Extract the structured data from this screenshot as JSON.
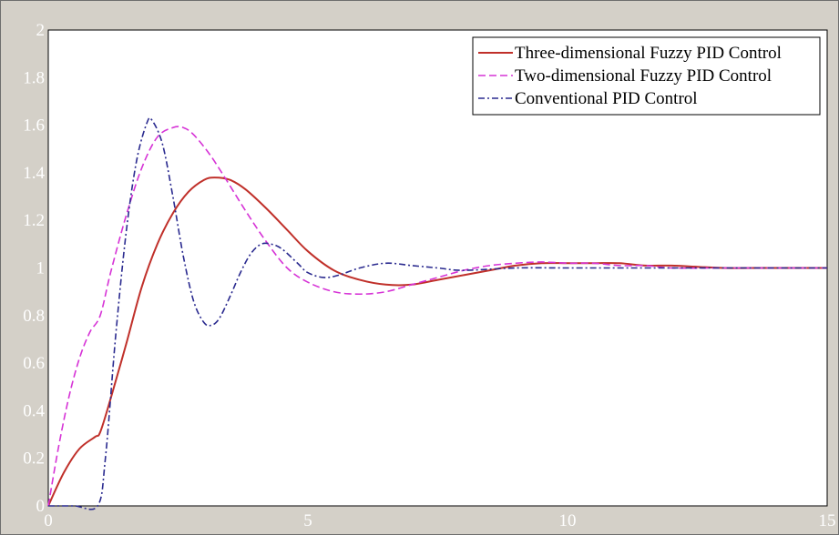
{
  "chart_data": {
    "type": "line",
    "title": "",
    "xlabel": "",
    "ylabel": "",
    "xlim": [
      0,
      15
    ],
    "ylim": [
      0,
      2
    ],
    "x_ticks": [
      "0",
      "5",
      "10",
      "15"
    ],
    "y_ticks": [
      "0",
      "0.2",
      "0.4",
      "0.6",
      "0.8",
      "1",
      "1.2",
      "1.4",
      "1.6",
      "1.8",
      "2"
    ],
    "grid": false,
    "legend_position": "top-right",
    "series": [
      {
        "name": "Three-dimensional Fuzzy PID Control",
        "color": "#c0302a",
        "dash": "solid",
        "x": [
          0,
          0.3,
          0.6,
          0.9,
          1.0,
          1.2,
          1.5,
          1.8,
          2.1,
          2.4,
          2.7,
          3.0,
          3.2,
          3.5,
          3.8,
          4.2,
          4.6,
          5.0,
          5.5,
          6.0,
          6.5,
          7.0,
          7.5,
          8.0,
          8.5,
          9.0,
          9.5,
          10.0,
          10.5,
          11.0,
          11.5,
          12.0,
          12.5,
          13.0,
          14.0,
          15.0
        ],
        "y": [
          0,
          0.14,
          0.24,
          0.29,
          0.31,
          0.45,
          0.68,
          0.92,
          1.1,
          1.23,
          1.32,
          1.37,
          1.38,
          1.37,
          1.33,
          1.25,
          1.16,
          1.07,
          0.99,
          0.95,
          0.93,
          0.93,
          0.95,
          0.97,
          0.99,
          1.01,
          1.02,
          1.02,
          1.02,
          1.02,
          1.01,
          1.01,
          1.005,
          1.0,
          1.0,
          1.0
        ]
      },
      {
        "name": "Two-dimensional Fuzzy PID Control",
        "color": "#d633d6",
        "dash": "dashed",
        "x": [
          0,
          0.2,
          0.4,
          0.6,
          0.8,
          1.0,
          1.2,
          1.5,
          1.8,
          2.1,
          2.4,
          2.6,
          2.8,
          3.1,
          3.4,
          3.8,
          4.2,
          4.6,
          5.0,
          5.5,
          6.0,
          6.5,
          7.0,
          7.5,
          8.0,
          8.5,
          9.0,
          9.5,
          10.0,
          10.5,
          11.0,
          11.5,
          12.0,
          13.0,
          14.0,
          15.0
        ],
        "y": [
          0,
          0.25,
          0.46,
          0.62,
          0.73,
          0.8,
          0.98,
          1.22,
          1.42,
          1.55,
          1.59,
          1.59,
          1.56,
          1.48,
          1.38,
          1.24,
          1.11,
          1.0,
          0.94,
          0.9,
          0.89,
          0.9,
          0.93,
          0.96,
          0.99,
          1.01,
          1.02,
          1.025,
          1.02,
          1.02,
          1.01,
          1.01,
          1.0,
          1.0,
          1.0,
          1.0
        ]
      },
      {
        "name": "Conventional PID Control",
        "color": "#2a2a8f",
        "dash": "dashdot",
        "x": [
          0,
          0.5,
          0.95,
          1.1,
          1.3,
          1.5,
          1.7,
          1.9,
          2.0,
          2.2,
          2.4,
          2.6,
          2.8,
          3.0,
          3.15,
          3.3,
          3.5,
          3.7,
          3.9,
          4.1,
          4.3,
          4.5,
          4.8,
          5.0,
          5.3,
          5.6,
          6.0,
          6.5,
          7.0,
          7.5,
          8.0,
          9.0,
          10.0,
          11.0,
          12.0,
          13.0,
          14.0,
          15.0
        ],
        "y": [
          0,
          0,
          0,
          0.2,
          0.72,
          1.15,
          1.45,
          1.61,
          1.62,
          1.52,
          1.3,
          1.05,
          0.86,
          0.77,
          0.76,
          0.79,
          0.88,
          0.98,
          1.06,
          1.1,
          1.1,
          1.08,
          1.02,
          0.98,
          0.96,
          0.97,
          1.0,
          1.02,
          1.01,
          1.0,
          0.99,
          1.0,
          1.0,
          1.0,
          1.0,
          1.0,
          1.0,
          1.0
        ]
      }
    ]
  }
}
